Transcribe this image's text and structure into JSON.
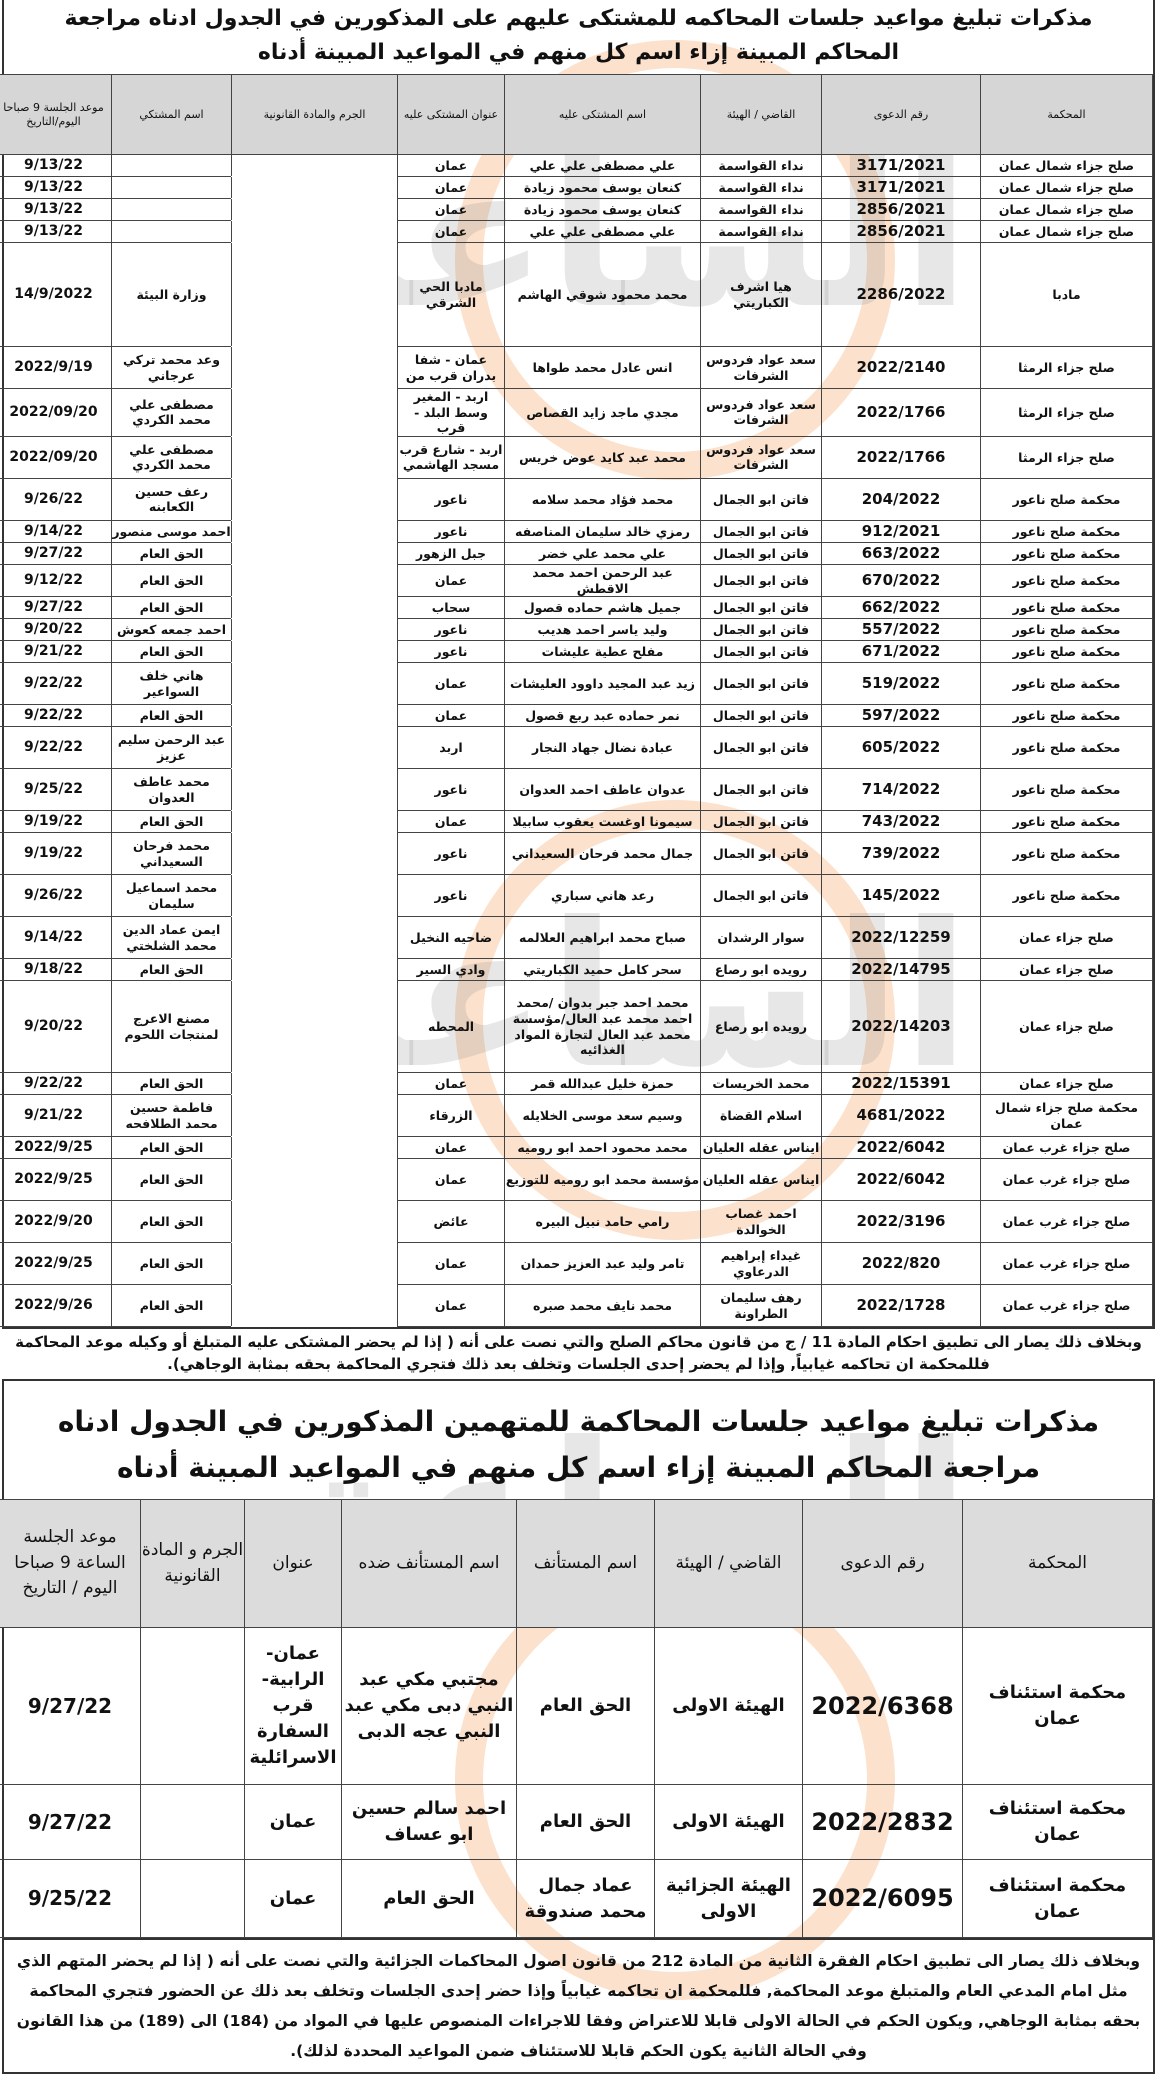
{
  "watermark": {
    "text": "مدار الساعة الإخبارية",
    "big": "الساعة",
    "small": "الإخبارية",
    "brand": "مدار"
  },
  "notice1": {
    "title": "مذكرات تبليغ مواعيد جلسات المحاكمه للمشتكى عليهم على المذكورين في الجدول ادناه مراجعة المحاكم المبينة إزاء اسم كل منهم في المواعيد المبينة أدناه",
    "columns": [
      "المحكمة",
      "رقم الدعوى",
      "القاضي / الهيئة",
      "اسم المشتكى عليه",
      "عنوان المشتكى عليه",
      "الجرم والمادة القانونية",
      "اسم المشتكي",
      "موعد الجلسة 9 صباحا اليوم/التاريخ"
    ],
    "rows": [
      [
        "صلح جزاء شمال عمان",
        "3171/2021",
        "نداء القواسمة",
        "علي مصطفى علي علي",
        "عمان",
        "",
        "",
        "9/13/22"
      ],
      [
        "صلح جزاء شمال عمان",
        "3171/2021",
        "نداء القواسمة",
        "كنعان يوسف محمود زيادة",
        "عمان",
        "",
        "",
        "9/13/22"
      ],
      [
        "صلح جزاء شمال عمان",
        "2856/2021",
        "نداء القواسمة",
        "كنعان يوسف محمود زيادة",
        "عمان",
        "",
        "",
        "9/13/22"
      ],
      [
        "صلح جزاء شمال عمان",
        "2856/2021",
        "نداء القواسمة",
        "علي مصطفى علي علي",
        "عمان",
        "",
        "",
        "9/13/22"
      ],
      [
        "مادبا",
        "2286/2022",
        "هيا اشرف الكباريتي",
        "محمد محمود شوقي الهاشم",
        "مادبا الحي الشرقي",
        "",
        "وزارة البيئة",
        "14/9/2022"
      ],
      [
        "صلح جزاء الرمثا",
        "2022/2140",
        "سعد عواد فردوس الشرفات",
        "انس عادل محمد طواها",
        "عمان - شفا بدران قرب من",
        "",
        "وعد محمد تركي عرجاني",
        "2022/9/19"
      ],
      [
        "صلح جزاء الرمثا",
        "2022/1766",
        "سعد عواد فردوس الشرفات",
        "مجدي ماجد زايد القصاص",
        "اربد - المغير وسط البلد - قرب",
        "",
        "مصطفى علي محمد الكردي",
        "2022/09/20"
      ],
      [
        "صلح جزاء الرمثا",
        "2022/1766",
        "سعد عواد فردوس الشرفات",
        "محمد عبد كايد عوض خريس",
        "اربد - شارع قرب مسجد الهاشمي",
        "",
        "مصطفى علي محمد الكردي",
        "2022/09/20"
      ],
      [
        "محكمة صلح ناعور",
        "204/2022",
        "فاتن ابو الجمال",
        "محمد فؤاد محمد سلامه",
        "ناعور",
        "",
        "رعف حسين الكعابنه",
        "9/26/22"
      ],
      [
        "محكمة صلح ناعور",
        "912/2021",
        "فاتن ابو الجمال",
        "رمزي خالد سليمان المناصفه",
        "ناعور",
        "",
        "احمد موسى منصور",
        "9/14/22"
      ],
      [
        "محكمة صلح ناعور",
        "663/2022",
        "فاتن ابو الجمال",
        "علي محمد علي خضر",
        "جبل الزهور",
        "",
        "الحق العام",
        "9/27/22"
      ],
      [
        "محكمة صلح ناعور",
        "670/2022",
        "فاتن ابو الجمال",
        "عبد الرحمن احمد محمد الاقطش",
        "عمان",
        "",
        "الحق العام",
        "9/12/22"
      ],
      [
        "محكمة صلح ناعور",
        "662/2022",
        "فاتن ابو الجمال",
        "جميل هاشم حماده قصول",
        "سحاب",
        "",
        "الحق العام",
        "9/27/22"
      ],
      [
        "محكمة صلح ناعور",
        "557/2022",
        "فاتن ابو الجمال",
        "وليد ياسر احمد هديب",
        "ناعور",
        "",
        "احمد جمعه كعوش",
        "9/20/22"
      ],
      [
        "محكمة صلح ناعور",
        "671/2022",
        "فاتن ابو الجمال",
        "مفلح عطية عليشات",
        "ناعور",
        "",
        "الحق العام",
        "9/21/22"
      ],
      [
        "محكمة صلح ناعور",
        "519/2022",
        "فاتن ابو الجمال",
        "زيد عبد المجيد داوود العليشات",
        "عمان",
        "",
        "هاني خلف السواعير",
        "9/22/22"
      ],
      [
        "محكمة صلح ناعور",
        "597/2022",
        "فاتن ابو الجمال",
        "نمر حماده عبد ربع قصول",
        "عمان",
        "",
        "الحق العام",
        "9/22/22"
      ],
      [
        "محكمة صلح ناعور",
        "605/2022",
        "فاتن ابو الجمال",
        "عبادة نضال جهاد النجار",
        "اربد",
        "",
        "عبد الرحمن سليم عزيز",
        "9/22/22"
      ],
      [
        "محكمة صلح ناعور",
        "714/2022",
        "فاتن ابو الجمال",
        "عدوان عاطف احمد العدوان",
        "ناعور",
        "",
        "محمد عاطف العدوان",
        "9/25/22"
      ],
      [
        "محكمة صلح ناعور",
        "743/2022",
        "فاتن ابو الجمال",
        "سيمونا اوغست يعقوب سابيلا",
        "عمان",
        "",
        "الحق العام",
        "9/19/22"
      ],
      [
        "محكمة صلح ناعور",
        "739/2022",
        "فاتن ابو الجمال",
        "جمال محمد فرحان السعيداني",
        "ناعور",
        "",
        "محمد فرحان السعيداني",
        "9/19/22"
      ],
      [
        "محكمة صلح ناعور",
        "145/2022",
        "فاتن ابو الجمال",
        "رعد هاني سباري",
        "ناعور",
        "",
        "محمد اسماعيل سليمان",
        "9/26/22"
      ],
      [
        "صلح جزاء عمان",
        "2022/12259",
        "سوار الرشدان",
        "صباح محمد ابراهيم العلالمه",
        "ضاحيه النخيل",
        "",
        "ايمن عماد الدين محمد الشلختي",
        "9/14/22"
      ],
      [
        "صلح جزاء عمان",
        "2022/14795",
        "رويده ابو رصاع",
        "سحر كامل حميد الكباريتي",
        "وادي السير",
        "",
        "الحق العام",
        "9/18/22"
      ],
      [
        "صلح جزاء عمان",
        "2022/14203",
        "رويده ابو رصاع",
        "محمد احمد جبر بدوان /محمد احمد محمد عبد العال/مؤسسة محمد عبد العال لتجارة المواد الغذائيه",
        "المحطه",
        "",
        "مصنع الاعرج لمنتجات اللحوم",
        "9/20/22"
      ],
      [
        "صلح جزاء عمان",
        "2022/15391",
        "محمد الخريسات",
        "حمزة خليل عبدالله قمر",
        "عمان",
        "",
        "الحق العام",
        "9/22/22"
      ],
      [
        "محكمة صلح جزاء شمال عمان",
        "4681/2022",
        "اسلام القضاة",
        "وسيم سعد موسى الخلايله",
        "الزرقاء",
        "",
        "فاطمة حسين محمد الطلافحه",
        "9/21/22"
      ],
      [
        "صلح جزاء غرب عمان",
        "2022/6042",
        "ايناس عقله العليان",
        "محمد محمود احمد ابو روميه",
        "عمان",
        "",
        "الحق العام",
        "2022/9/25"
      ],
      [
        "صلح جزاء غرب عمان",
        "2022/6042",
        "ايناس عقله العليان",
        "مؤسسة محمد ابو روميه للتوزيع",
        "عمان",
        "",
        "الحق العام",
        "2022/9/25"
      ],
      [
        "صلح جزاء غرب عمان",
        "2022/3196",
        "احمد غصاب الخوالدة",
        "رامي حامد نبيل البيره",
        "عائض",
        "",
        "الحق العام",
        "2022/9/20"
      ],
      [
        "صلح جزاء غرب عمان",
        "2022/820",
        "غيداء إبراهيم الدرعاوي",
        "تامر وليد عبد العزيز حمدان",
        "عمان",
        "",
        "الحق العام",
        "2022/9/25"
      ],
      [
        "صلح جزاء غرب عمان",
        "2022/1728",
        "رهف سليمان الطراونة",
        "محمد نايف محمد صبره",
        "عمان",
        "",
        "الحق العام",
        "2022/9/26"
      ]
    ],
    "footnote": "وبخلاف ذلك يصار الى تطبيق احكام المادة 11 / ج من قانون محاكم الصلح والتي نصت على أنه ( إذا لم يحضر المشتكى عليه المتبلغ أو وكيله موعد المحاكمة فللمحكمة ان تحاكمه غيابياً, وإذا لم يحضر إحدى الجلسات وتخلف بعد ذلك فتجري المحاكمة بحقه بمثابة الوجاهي)."
  },
  "notice2": {
    "title": "مذكرات تبليغ مواعيد جلسات المحاكمة للمتهمين المذكورين في الجدول ادناه مراجعة المحاكم المبينة إزاء اسم كل منهم في المواعيد المبينة أدناه",
    "columns": [
      "المحكمة",
      "رقم الدعوى",
      "القاضي / الهيئة",
      "اسم المستأنف",
      "اسم المستأنف ضده",
      "عنوان",
      "الجرم و المادة القانونية",
      "موعد الجلسة الساعة 9 صباحا اليوم / التاريخ"
    ],
    "rows": [
      [
        "محكمة استئناف عمان",
        "2022/6368",
        "الهيئة الاولى",
        "الحق العام",
        "مجتبي مكي عبد النبي دبى مكي عبد النبي عجه الدبى",
        "عمان- الرابية- قرب السفارة الاسرائلية",
        "",
        "9/27/22"
      ],
      [
        "محكمة استئناف عمان",
        "2022/2832",
        "الهيئة الاولى",
        "الحق العام",
        "احمد سالم حسين ابو عساف",
        "عمان",
        "",
        "9/27/22"
      ],
      [
        "محكمة استئناف عمان",
        "2022/6095",
        "الهيئة الجزائية الاولى",
        "عماد جمال محمد صندوقة",
        "الحق العام",
        "عمان",
        "",
        "9/25/22"
      ]
    ],
    "footnote": "وبخلاف ذلك يصار الى تطبيق احكام الفقرة الثانية من المادة 212 من قانون اصول المحاكمات الجزائية والتي نصت على أنه ( إذا لم يحضر المتهم الذي مثل امام المدعي العام والمتبلغ موعد المحاكمة, فللمحكمة ان تحاكمه غيابياً وإذا حضر إحدى الجلسات وتخلف بعد ذلك عن الحضور فتجري المحاكمة بحقه بمثابة الوجاهي, ويكون الحكم في الحالة الاولى قابلا للاعتراض وفقا للاجراءات المنصوص عليها في المواد من (184) الى (189) من هذا القانون وفي الحالة الثانية يكون الحكم قابلا للاستئناف ضمن المواعيد المحددة لذلك)."
  }
}
